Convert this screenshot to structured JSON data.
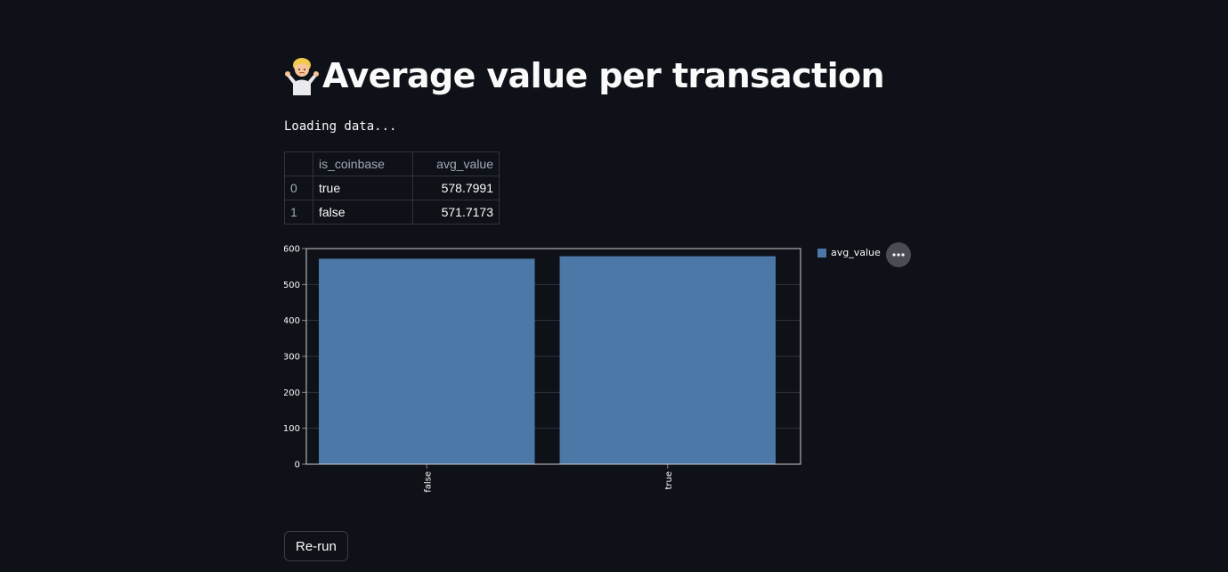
{
  "page": {
    "title_emoji": "🤷‍♂️",
    "title": "Average value per transaction",
    "status_text": "Loading data..."
  },
  "table": {
    "columns": [
      "",
      "is_coinbase",
      "avg_value"
    ],
    "rows": [
      {
        "index": "0",
        "is_coinbase": "true",
        "avg_value": "578.7991"
      },
      {
        "index": "1",
        "is_coinbase": "false",
        "avg_value": "571.7173"
      }
    ]
  },
  "chart_data": {
    "type": "bar",
    "categories": [
      "false",
      "true"
    ],
    "series": [
      {
        "name": "avg_value",
        "values": [
          571.7173,
          578.7991
        ],
        "color": "#4c78a8"
      }
    ],
    "ylim": [
      0,
      600
    ],
    "yticks": [
      0,
      100,
      200,
      300,
      400,
      500,
      600
    ],
    "xlabel": "",
    "ylabel": "",
    "grid": true,
    "legend": "top-right"
  },
  "chart_menu": {
    "icon": "more-horizontal-icon"
  },
  "buttons": {
    "rerun_label": "Re-run"
  },
  "colors": {
    "background": "#0e1117",
    "bar": "#4c78a8",
    "text": "#fafafa",
    "muted_text": "#a3a8b8"
  }
}
